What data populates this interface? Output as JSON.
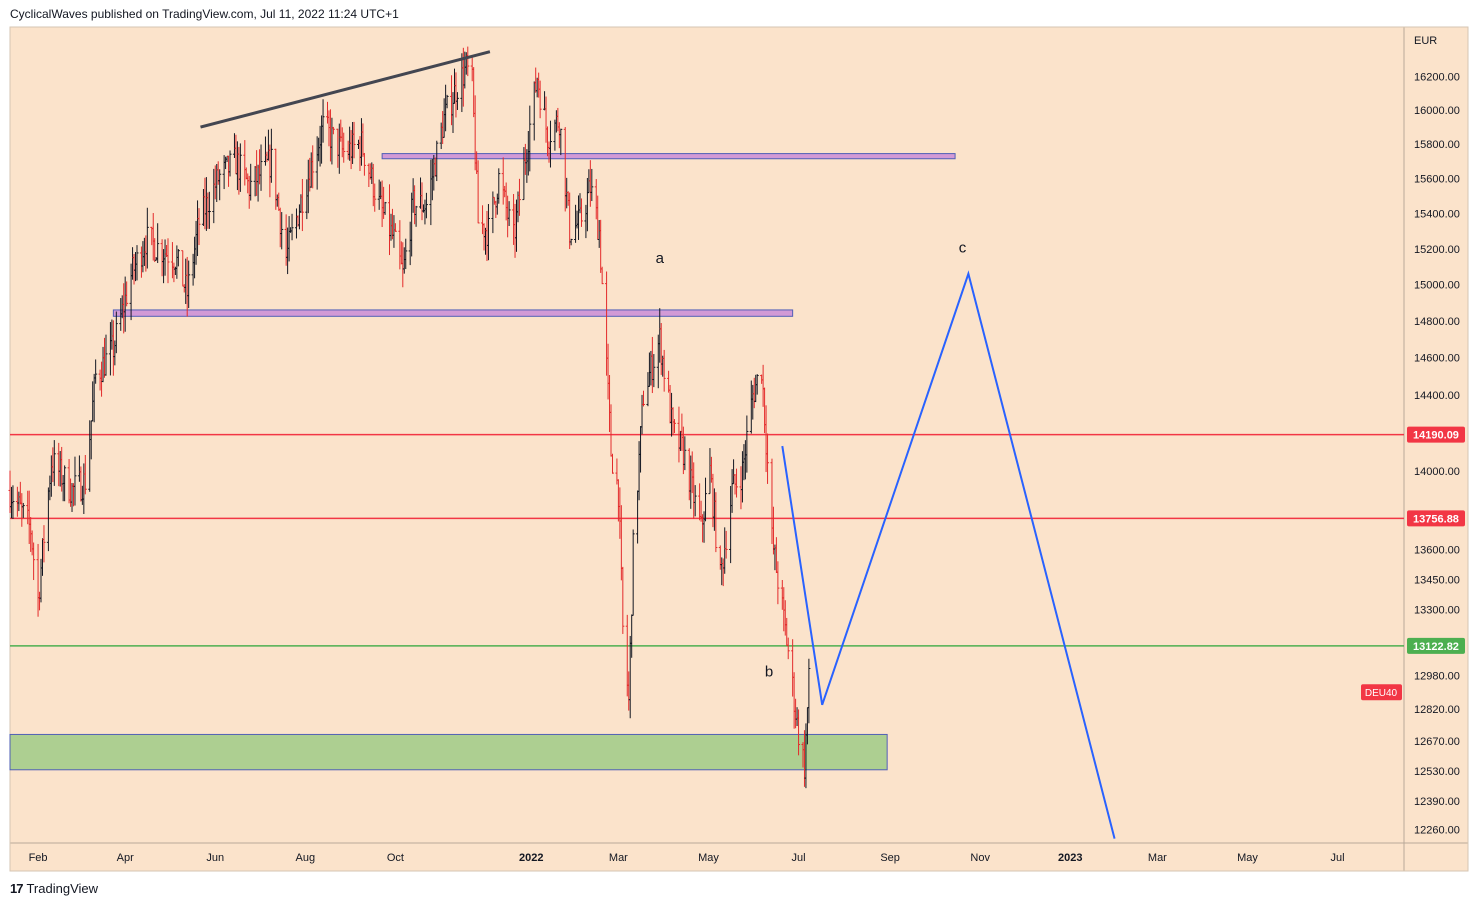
{
  "header": {
    "publish_line": "CyclicalWaves published on TradingView.com, Jul 11, 2022 11:24 UTC+1"
  },
  "footer": {
    "logo_mark": "17",
    "brand": "TradingView"
  },
  "colors": {
    "background": "#fbe3cb",
    "candle_up": "#131722",
    "candle_down": "#e32b2b",
    "red_line": "#f23645",
    "green_line": "#4caf50",
    "blue_projection": "#2962ff",
    "resistance_zone": "#ce93d8",
    "support_zone": "#a5cd8b"
  },
  "chart_data": {
    "type": "candlestick",
    "symbol_tag": "DEU40",
    "currency": "EUR",
    "y_log_scale": true,
    "ylim": [
      12200,
      16500
    ],
    "y_ticks": [
      12260,
      12390,
      12530,
      12670,
      12820,
      12980,
      13300,
      13450,
      13600,
      14000,
      14400,
      14600,
      14800,
      15000,
      15200,
      15400,
      15600,
      15800,
      16000,
      16200
    ],
    "y_tick_labels": [
      "12260.00",
      "12390.00",
      "12530.00",
      "12670.00",
      "12820.00",
      "12980.00",
      "13300.00",
      "13450.00",
      "13600.00",
      "14000.00",
      "14400.00",
      "14600.00",
      "14800.00",
      "15000.00",
      "15200.00",
      "15400.00",
      "15600.00",
      "15800.00",
      "16000.00",
      "16200.00"
    ],
    "x_ticks": [
      {
        "label": "Feb",
        "date": "2021-02-01",
        "bold": false
      },
      {
        "label": "Apr",
        "date": "2021-04-01",
        "bold": false
      },
      {
        "label": "Jun",
        "date": "2021-06-01",
        "bold": false
      },
      {
        "label": "Aug",
        "date": "2021-08-01",
        "bold": false
      },
      {
        "label": "Oct",
        "date": "2021-10-01",
        "bold": false
      },
      {
        "label": "2022",
        "date": "2022-01-01",
        "bold": true
      },
      {
        "label": "Mar",
        "date": "2022-03-01",
        "bold": false
      },
      {
        "label": "May",
        "date": "2022-05-01",
        "bold": false
      },
      {
        "label": "Jul",
        "date": "2022-07-01",
        "bold": false
      },
      {
        "label": "Sep",
        "date": "2022-09-01",
        "bold": false
      },
      {
        "label": "Nov",
        "date": "2022-11-01",
        "bold": false
      },
      {
        "label": "2023",
        "date": "2023-01-01",
        "bold": true
      },
      {
        "label": "Mar",
        "date": "2023-03-01",
        "bold": false
      },
      {
        "label": "May",
        "date": "2023-05-01",
        "bold": false
      },
      {
        "label": "Jul",
        "date": "2023-07-01",
        "bold": false
      }
    ],
    "xlim": [
      "2021-01-13",
      "2023-08-15"
    ],
    "price_path": [
      [
        "2021-01-13",
        13900
      ],
      [
        "2021-01-27",
        13700
      ],
      [
        "2021-02-01",
        13350
      ],
      [
        "2021-02-10",
        14050
      ],
      [
        "2021-02-24",
        13900
      ],
      [
        "2021-03-05",
        13950
      ],
      [
        "2021-03-12",
        14500
      ],
      [
        "2021-03-24",
        14650
      ],
      [
        "2021-04-05",
        15050
      ],
      [
        "2021-04-15",
        15250
      ],
      [
        "2021-05-05",
        15150
      ],
      [
        "2021-05-13",
        14950
      ],
      [
        "2021-05-21",
        15350
      ],
      [
        "2021-06-03",
        15600
      ],
      [
        "2021-06-15",
        15700
      ],
      [
        "2021-06-24",
        15550
      ],
      [
        "2021-07-09",
        15700
      ],
      [
        "2021-07-19",
        15150
      ],
      [
        "2021-07-30",
        15500
      ],
      [
        "2021-08-13",
        15900
      ],
      [
        "2021-08-27",
        15750
      ],
      [
        "2021-09-08",
        15800
      ],
      [
        "2021-09-20",
        15450
      ],
      [
        "2021-09-30",
        15250
      ],
      [
        "2021-10-06",
        15050
      ],
      [
        "2021-10-13",
        15450
      ],
      [
        "2021-10-22",
        15450
      ],
      [
        "2021-11-03",
        15950
      ],
      [
        "2021-11-12",
        16150
      ],
      [
        "2021-11-18",
        16250
      ],
      [
        "2021-11-22",
        16150
      ],
      [
        "2021-11-26",
        15350
      ],
      [
        "2021-12-03",
        15300
      ],
      [
        "2021-12-10",
        15600
      ],
      [
        "2021-12-20",
        15250
      ],
      [
        "2021-12-30",
        15850
      ],
      [
        "2022-01-05",
        16200
      ],
      [
        "2022-01-12",
        15850
      ],
      [
        "2022-01-20",
        15950
      ],
      [
        "2022-01-27",
        15300
      ],
      [
        "2022-02-03",
        15350
      ],
      [
        "2022-02-10",
        15550
      ],
      [
        "2022-02-16",
        15300
      ],
      [
        "2022-02-24",
        14100
      ],
      [
        "2022-03-01",
        13900
      ],
      [
        "2022-03-04",
        13200
      ],
      [
        "2022-03-08",
        12850
      ],
      [
        "2022-03-11",
        13600
      ],
      [
        "2022-03-18",
        14400
      ],
      [
        "2022-03-29",
        14700
      ],
      [
        "2022-04-07",
        14200
      ],
      [
        "2022-04-14",
        14100
      ],
      [
        "2022-04-26",
        13700
      ],
      [
        "2022-05-02",
        14000
      ],
      [
        "2022-05-09",
        13450
      ],
      [
        "2022-05-17",
        13900
      ],
      [
        "2022-05-24",
        14000
      ],
      [
        "2022-05-31",
        14400
      ],
      [
        "2022-06-06",
        14550
      ],
      [
        "2022-06-13",
        13650
      ],
      [
        "2022-06-20",
        13300
      ],
      [
        "2022-06-24",
        13100
      ],
      [
        "2022-06-30",
        12750
      ],
      [
        "2022-07-05",
        12550
      ],
      [
        "2022-07-08",
        12950
      ]
    ],
    "horizontal_lines": [
      {
        "name": "upper-red",
        "price": 14190.09,
        "label": "14190.09",
        "color": "#f23645"
      },
      {
        "name": "lower-red",
        "price": 13756.88,
        "label": "13756.88",
        "color": "#f23645"
      },
      {
        "name": "green",
        "price": 13122.82,
        "label": "13122.82",
        "color": "#4caf50"
      }
    ],
    "zones": [
      {
        "name": "upper-resistance",
        "from": "2021-09-22",
        "to": "2022-10-15",
        "price_low": 15715,
        "price_high": 15745,
        "color": "#ce93d8"
      },
      {
        "name": "mid-resistance",
        "from": "2021-03-24",
        "to": "2022-06-27",
        "price_low": 14825,
        "price_high": 14860,
        "color": "#ce93d8"
      },
      {
        "name": "support",
        "from": "2021-01-13",
        "to": "2022-08-30",
        "price_low": 12535,
        "price_high": 12700,
        "color": "#a5cd8b"
      }
    ],
    "trendline": {
      "from": [
        "2021-05-22",
        15900
      ],
      "to": [
        "2021-12-04",
        16350
      ]
    },
    "projection": [
      [
        "2022-06-20",
        14130
      ],
      [
        "2022-07-17",
        12840
      ],
      [
        "2022-10-24",
        15060
      ],
      [
        "2023-01-31",
        12220
      ]
    ],
    "wave_labels": [
      {
        "text": "a",
        "date": "2022-03-29",
        "price": 15120
      },
      {
        "text": "b",
        "date": "2022-06-11",
        "price": 12975
      },
      {
        "text": "c",
        "date": "2022-10-20",
        "price": 15180
      }
    ]
  }
}
